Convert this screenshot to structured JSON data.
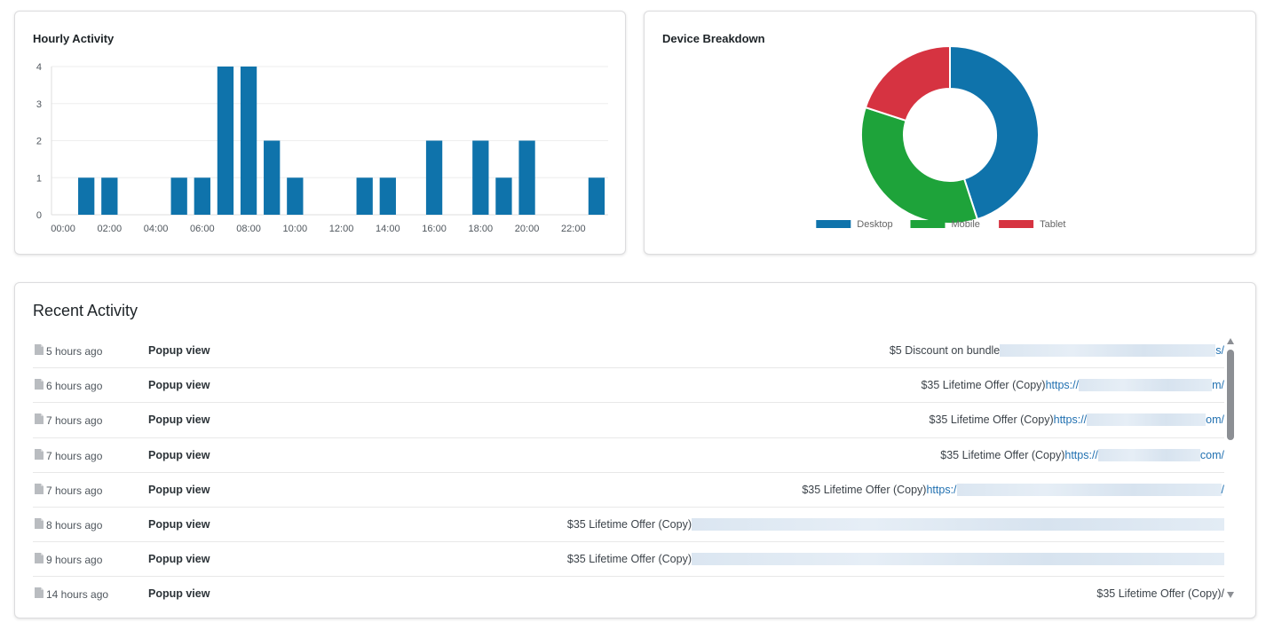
{
  "hourly": {
    "title": "Hourly Activity"
  },
  "device": {
    "title": "Device Breakdown"
  },
  "recent": {
    "title": "Recent Activity",
    "rows": [
      {
        "time": "5 hours ago",
        "action": "Popup view",
        "text": "$5 Discount on bundle",
        "link": "",
        "tail": "s/"
      },
      {
        "time": "6 hours ago",
        "action": "Popup view",
        "text": "$35 Lifetime Offer (Copy)",
        "link": "https://",
        "tail": "m/"
      },
      {
        "time": "7 hours ago",
        "action": "Popup view",
        "text": "$35 Lifetime Offer (Copy)",
        "link": "https://",
        "tail": "om/"
      },
      {
        "time": "7 hours ago",
        "action": "Popup view",
        "text": "$35 Lifetime Offer (Copy)",
        "link": "https://",
        "tail": "com/"
      },
      {
        "time": "7 hours ago",
        "action": "Popup view",
        "text": "$35 Lifetime Offer (Copy)",
        "link": "https:/",
        "tail": "/"
      },
      {
        "time": "8 hours ago",
        "action": "Popup view",
        "text": "$35 Lifetime Offer (Copy)",
        "link": "",
        "tail": ""
      },
      {
        "time": "9 hours ago",
        "action": "Popup view",
        "text": "$35 Lifetime Offer (Copy)",
        "link": "",
        "tail": ""
      },
      {
        "time": "14 hours ago",
        "action": "Popup view",
        "text": "$35 Lifetime Offer (Copy)",
        "link": "",
        "tail": "/"
      }
    ]
  },
  "colors": {
    "bar": "#0f73ab",
    "desktop": "#0f73ab",
    "mobile": "#1ea33a",
    "tablet": "#d63341",
    "link": "#2271b1"
  },
  "chart_data": [
    {
      "type": "bar",
      "title": "Hourly Activity",
      "categories": [
        "00:00",
        "01:00",
        "02:00",
        "03:00",
        "04:00",
        "05:00",
        "06:00",
        "07:00",
        "08:00",
        "09:00",
        "10:00",
        "11:00",
        "12:00",
        "13:00",
        "14:00",
        "15:00",
        "16:00",
        "17:00",
        "18:00",
        "19:00",
        "20:00",
        "21:00",
        "22:00",
        "23:00"
      ],
      "x_tick_labels": [
        "00:00",
        "02:00",
        "04:00",
        "06:00",
        "08:00",
        "10:00",
        "12:00",
        "14:00",
        "16:00",
        "18:00",
        "20:00",
        "22:00"
      ],
      "values": [
        0,
        1,
        1,
        0,
        0,
        1,
        1,
        4,
        4,
        2,
        1,
        0,
        0,
        1,
        1,
        0,
        2,
        0,
        2,
        1,
        2,
        0,
        0,
        1
      ],
      "ylim": [
        0,
        4
      ],
      "y_ticks": [
        0,
        1,
        2,
        3,
        4
      ],
      "grid": true,
      "xlabel": "",
      "ylabel": ""
    },
    {
      "type": "pie",
      "variant": "doughnut",
      "title": "Device Breakdown",
      "labels": [
        "Desktop",
        "Mobile",
        "Tablet"
      ],
      "values": [
        45,
        35,
        20
      ],
      "legend": "bottom"
    }
  ]
}
